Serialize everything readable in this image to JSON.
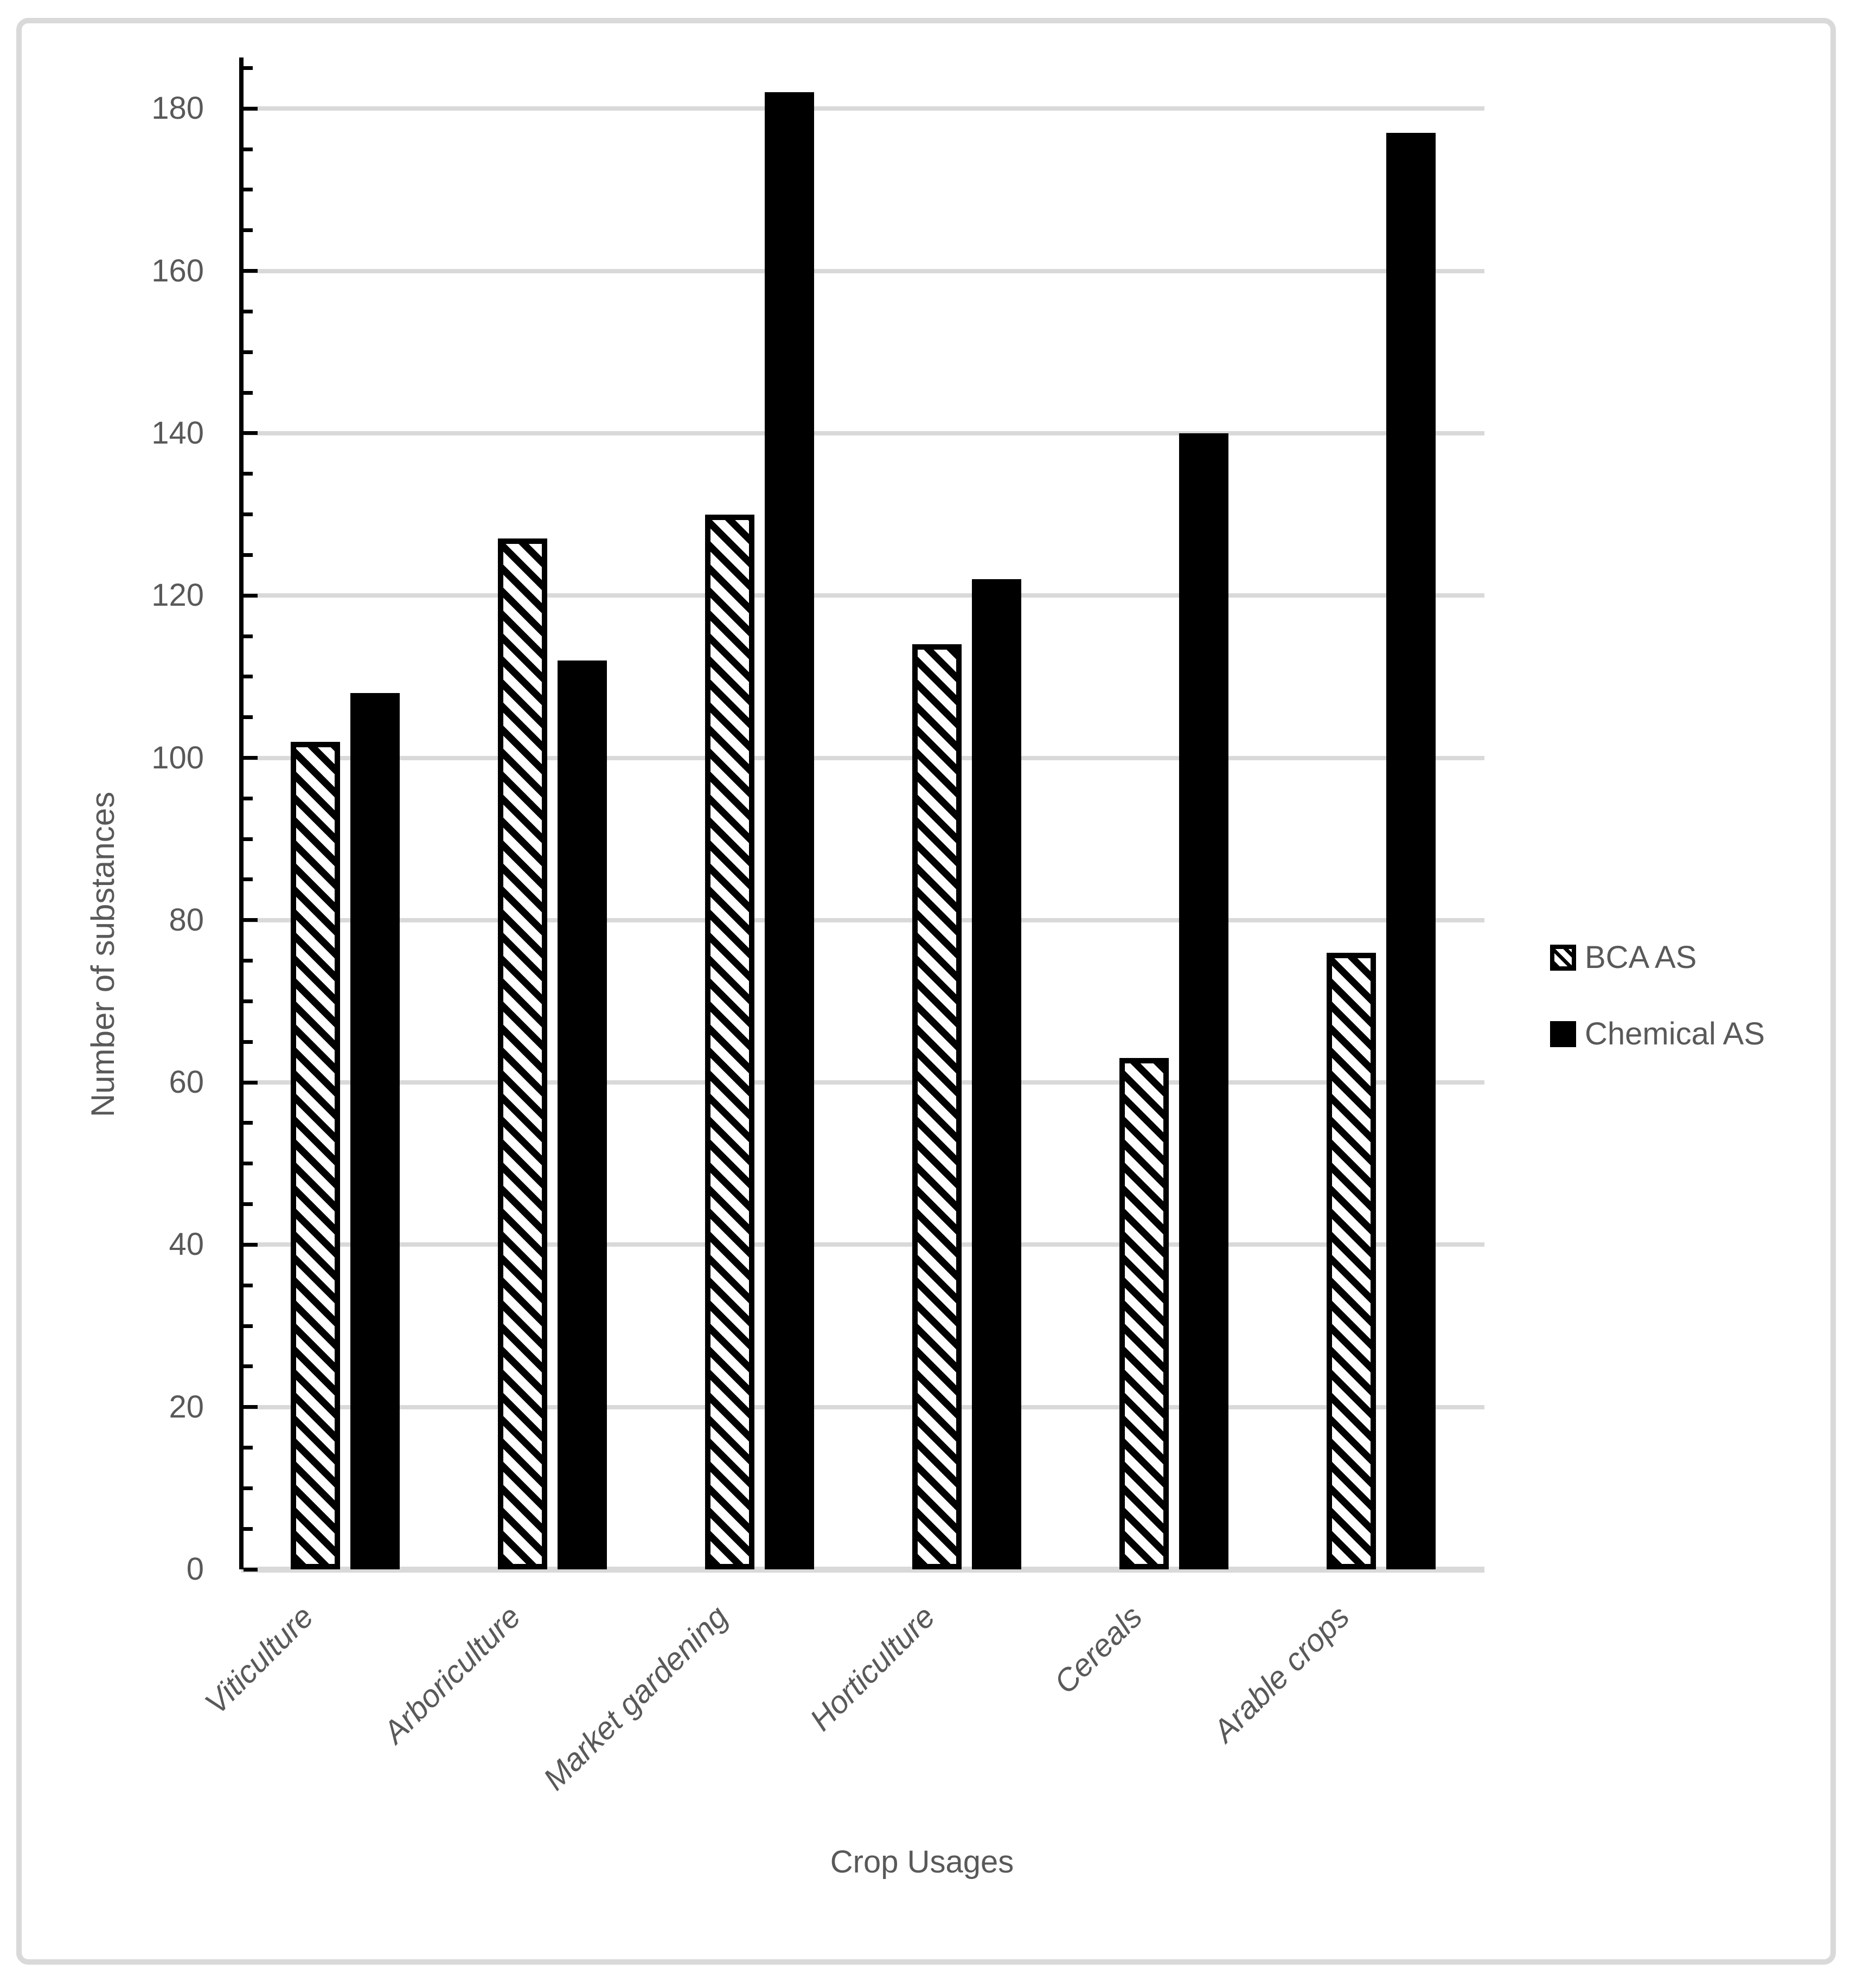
{
  "chart_data": {
    "type": "bar",
    "title": "",
    "xlabel": "Crop Usages",
    "ylabel": "Number of substances",
    "categories": [
      "Viticulture",
      "Arboriculture",
      "Market gardening",
      "Horticulture",
      "Cereals",
      "Arable crops"
    ],
    "series": [
      {
        "name": "BCA AS",
        "pattern": "hatched",
        "values": [
          102,
          127,
          130,
          114,
          63,
          76
        ]
      },
      {
        "name": "Chemical AS",
        "pattern": "solid",
        "values": [
          108,
          112,
          182,
          122,
          140,
          177
        ]
      }
    ],
    "ylim": [
      0,
      180
    ],
    "yticks": [
      0,
      20,
      40,
      60,
      80,
      100,
      120,
      140,
      160,
      180
    ],
    "ytick_minor_step": 5,
    "yaxis_top": 185,
    "grid": "horizontal-major",
    "legend_position": "right"
  },
  "legend": {
    "items": [
      {
        "label": "BCA AS",
        "swatch": "hatched"
      },
      {
        "label": "Chemical AS",
        "swatch": "solid"
      }
    ]
  },
  "colors": {
    "bar_black": "#000000",
    "text_gray": "#595959",
    "gridline": "#d9d9d9",
    "frame_border": "#d9d9d9",
    "background": "#ffffff"
  }
}
